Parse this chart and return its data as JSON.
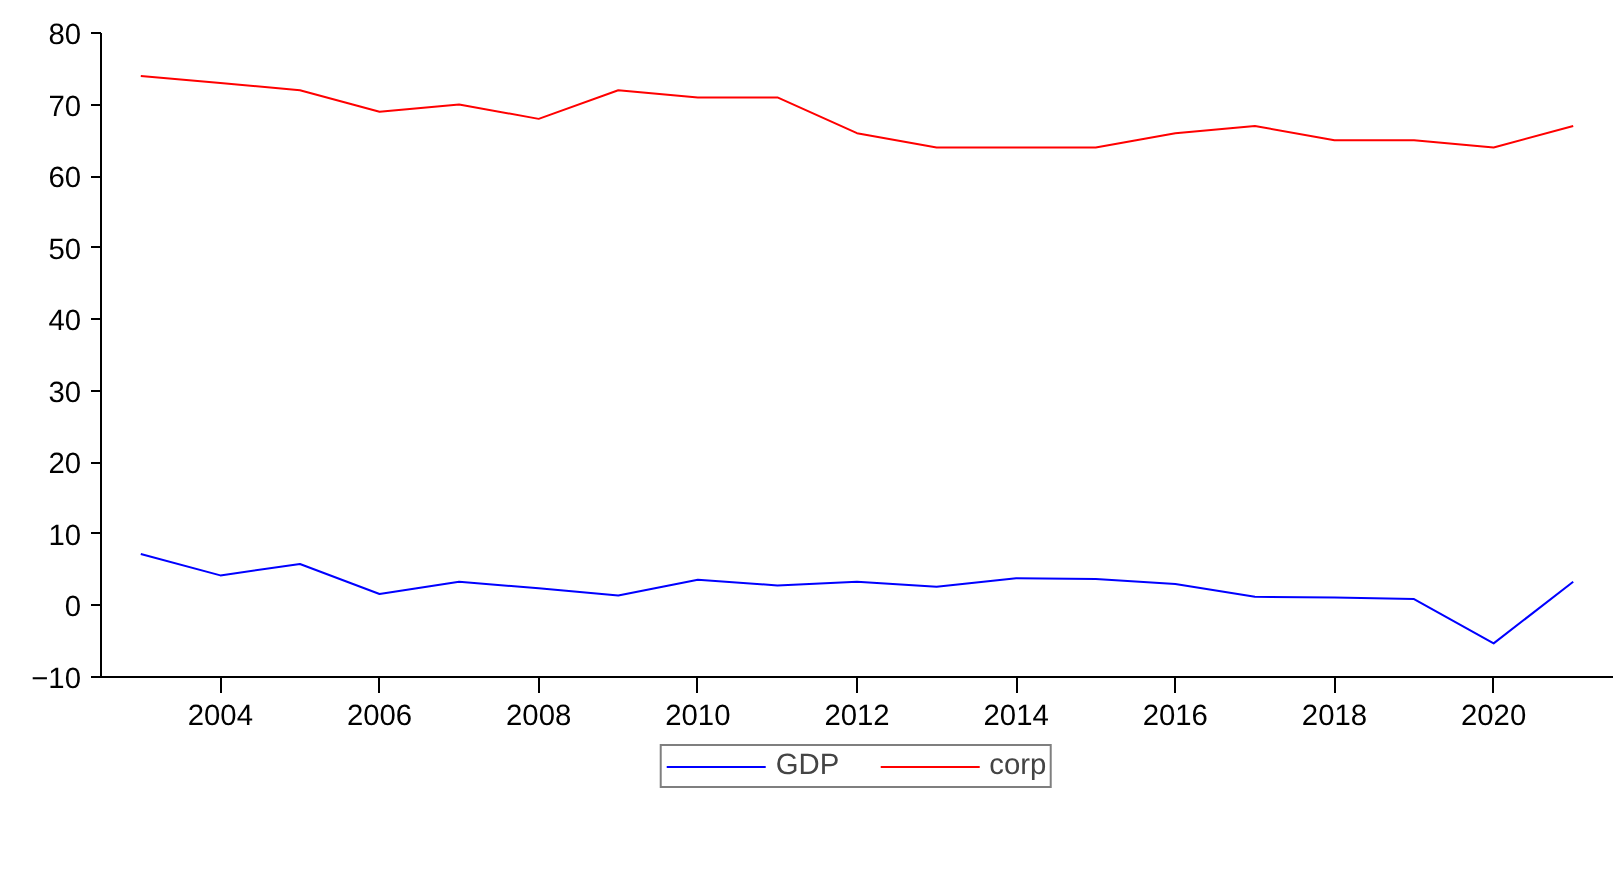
{
  "chart_data": {
    "type": "line",
    "x": [
      2003,
      2004,
      2005,
      2006,
      2007,
      2008,
      2009,
      2010,
      2011,
      2012,
      2013,
      2014,
      2015,
      2016,
      2017,
      2018,
      2019,
      2020,
      2021
    ],
    "series": [
      {
        "name": "GDP",
        "color": "#0000ff",
        "values": [
          7.2,
          4.2,
          5.8,
          1.6,
          3.3,
          2.4,
          1.4,
          3.6,
          2.8,
          3.3,
          2.6,
          3.8,
          3.7,
          3.0,
          1.2,
          1.1,
          0.9,
          -5.3,
          3.3
        ]
      },
      {
        "name": "corp",
        "color": "#ff0000",
        "values": [
          74,
          73,
          72,
          69,
          70,
          68,
          72,
          71,
          71,
          66,
          64,
          64,
          64,
          66,
          67,
          65,
          65,
          64,
          67
        ]
      }
    ],
    "xlim": [
      2002.5,
      2021.5
    ],
    "xticks": [
      2004,
      2006,
      2008,
      2010,
      2012,
      2014,
      2016,
      2018,
      2020
    ],
    "ylim": [
      -10,
      80
    ],
    "yticks": [
      -10,
      0,
      10,
      20,
      30,
      40,
      50,
      60,
      70,
      80
    ],
    "grid": false,
    "legend": "bottom",
    "marker": "none",
    "line_style": "solid"
  }
}
